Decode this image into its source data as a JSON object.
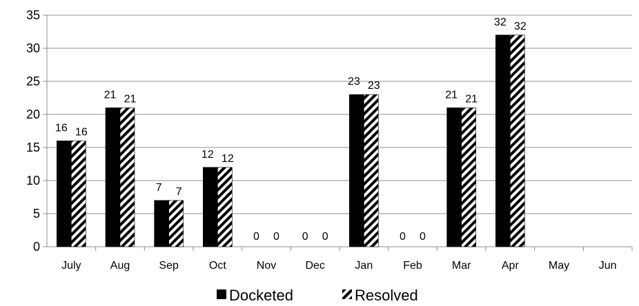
{
  "chart_data": {
    "type": "bar",
    "categories": [
      "July",
      "Aug",
      "Sep",
      "Oct",
      "Nov",
      "Dec",
      "Jan",
      "Feb",
      "Mar",
      "Apr",
      "May",
      "Jun"
    ],
    "series": [
      {
        "name": "Docketed",
        "values": [
          16,
          21,
          7,
          12,
          0,
          0,
          23,
          0,
          21,
          32,
          null,
          null
        ],
        "fill": "#000000"
      },
      {
        "name": "Resolved",
        "values": [
          16,
          21,
          7,
          12,
          0,
          0,
          23,
          0,
          21,
          32,
          null,
          null
        ],
        "fill": "hatch"
      }
    ],
    "ylim": [
      0,
      35
    ],
    "yticks": [
      0,
      5,
      10,
      15,
      20,
      25,
      30,
      35
    ],
    "grid": true,
    "legend": "bottom",
    "data_labels": true
  }
}
